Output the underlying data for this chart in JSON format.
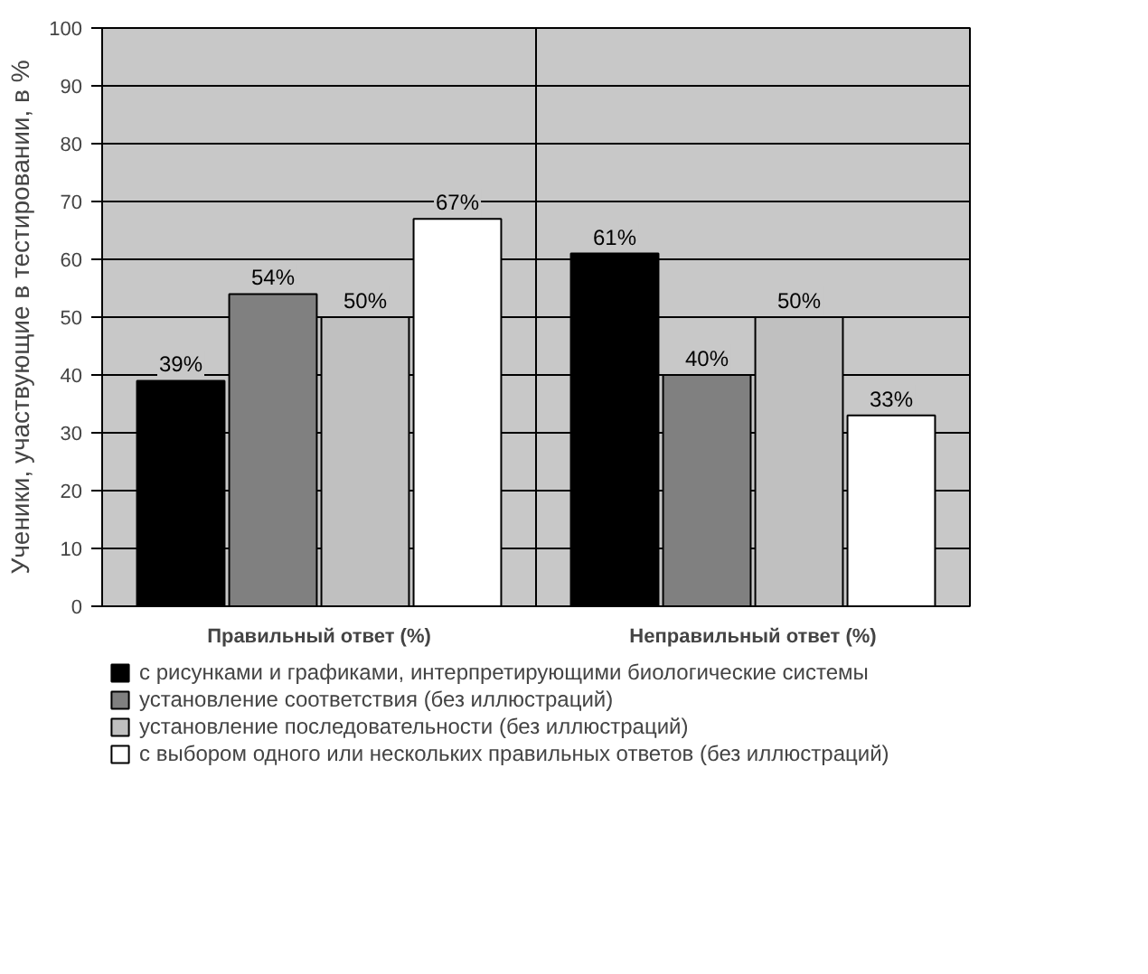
{
  "chart_data": {
    "type": "bar",
    "categories": [
      "Правильный ответ (%)",
      "Неправильный ответ (%)"
    ],
    "ylabel": "Ученики, участвующие в тестировании, в %",
    "series": [
      {
        "name": "с рисунками и графиками, интерпретирующими биологические системы",
        "color": "#000000",
        "values": [
          39,
          61
        ],
        "value_labels": [
          "39%",
          "61%"
        ]
      },
      {
        "name": "установление соответствия (без иллюстраций)",
        "color": "#808080",
        "values": [
          54,
          40
        ],
        "value_labels": [
          "54%",
          "40%"
        ]
      },
      {
        "name": "установление последовательности (без иллюстраций)",
        "color": "#c0c0c0",
        "values": [
          50,
          50
        ],
        "value_labels": [
          "50%",
          "50%"
        ]
      },
      {
        "name": "с выбором одного или нескольких правильных ответов (без иллюстраций)",
        "color": "#ffffff",
        "values": [
          67,
          33
        ],
        "value_labels": [
          "67%",
          "33%"
        ]
      }
    ],
    "ylim": [
      0,
      100
    ],
    "yticks": [
      0,
      10,
      20,
      30,
      40,
      50,
      60,
      70,
      80,
      90,
      100
    ],
    "grid": "y",
    "legend": "bottom"
  }
}
